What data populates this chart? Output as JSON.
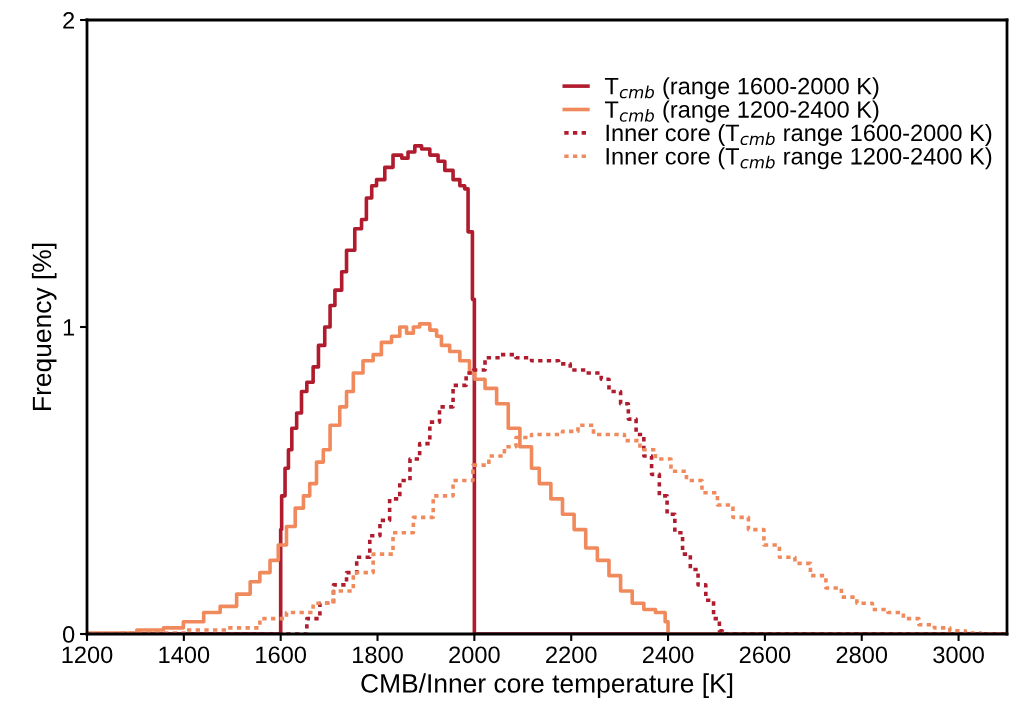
{
  "chart_data": {
    "type": "step",
    "xlabel": "CMB/Inner core temperature [K]",
    "ylabel": "Frequency [%]",
    "xlim": [
      1200,
      3100
    ],
    "ylim": [
      0,
      2
    ],
    "xticks": [
      1200,
      1400,
      1600,
      1800,
      2000,
      2200,
      2400,
      2600,
      2800,
      3000
    ],
    "yticks": [
      0,
      1,
      2
    ],
    "grid": false,
    "legend": "top right",
    "series": [
      {
        "name": "T$_{cmb}$ (range 1600-2000 K)",
        "color": "#b01c2e",
        "line_style": "solid",
        "x": [
          1200,
          1600,
          1602,
          1609,
          1616,
          1623,
          1633,
          1643,
          1654,
          1667,
          1678,
          1691,
          1702,
          1712,
          1726,
          1736,
          1753,
          1767,
          1777,
          1788,
          1798,
          1815,
          1832,
          1850,
          1863,
          1877,
          1891,
          1908,
          1925,
          1939,
          1956,
          1970,
          1980,
          1987,
          1996,
          2000,
          3100
        ],
        "values": [
          0,
          0.34,
          0.45,
          0.54,
          0.6,
          0.67,
          0.72,
          0.79,
          0.82,
          0.87,
          0.94,
          1.0,
          1.07,
          1.12,
          1.18,
          1.25,
          1.32,
          1.35,
          1.42,
          1.46,
          1.48,
          1.52,
          1.56,
          1.55,
          1.57,
          1.59,
          1.58,
          1.56,
          1.54,
          1.51,
          1.48,
          1.46,
          1.45,
          1.31,
          1.09,
          0,
          0
        ]
      },
      {
        "name": "T$_{cmb}$ (range 1200-2400 K)",
        "color": "#f08a5c",
        "line_style": "solid",
        "x": [
          1200,
          1303,
          1358,
          1399,
          1441,
          1475,
          1509,
          1537,
          1557,
          1578,
          1595,
          1612,
          1630,
          1647,
          1660,
          1674,
          1688,
          1702,
          1722,
          1736,
          1750,
          1770,
          1791,
          1808,
          1829,
          1846,
          1860,
          1874,
          1887,
          1908,
          1922,
          1932,
          1949,
          1970,
          1990,
          2001,
          2022,
          2046,
          2070,
          2094,
          2118,
          2134,
          2158,
          2182,
          2206,
          2230,
          2254,
          2278,
          2302,
          2326,
          2350,
          2374,
          2394,
          2400,
          3100
        ],
        "values": [
          0.003,
          0.013,
          0.02,
          0.04,
          0.07,
          0.09,
          0.13,
          0.17,
          0.2,
          0.24,
          0.29,
          0.35,
          0.41,
          0.45,
          0.49,
          0.56,
          0.6,
          0.68,
          0.74,
          0.79,
          0.85,
          0.89,
          0.91,
          0.95,
          0.97,
          1.0,
          0.98,
          1.0,
          1.01,
          0.99,
          0.97,
          0.94,
          0.92,
          0.89,
          0.85,
          0.83,
          0.8,
          0.75,
          0.67,
          0.61,
          0.54,
          0.49,
          0.44,
          0.39,
          0.34,
          0.28,
          0.24,
          0.19,
          0.14,
          0.1,
          0.08,
          0.07,
          0.04,
          0,
          0
        ]
      },
      {
        "name": "Inner core (T$_{cmb}$ range 1600-2000 K)",
        "color": "#b01c2e",
        "line_style": "dashed",
        "x": [
          1200,
          1612,
          1654,
          1681,
          1709,
          1736,
          1757,
          1784,
          1805,
          1825,
          1846,
          1867,
          1887,
          1908,
          1928,
          1956,
          1983,
          1998,
          2022,
          2054,
          2086,
          2118,
          2150,
          2174,
          2198,
          2230,
          2262,
          2278,
          2302,
          2318,
          2334,
          2350,
          2366,
          2382,
          2398,
          2414,
          2430,
          2446,
          2462,
          2478,
          2494,
          2506,
          2512,
          3100
        ],
        "values": [
          0,
          0,
          0.05,
          0.1,
          0.16,
          0.2,
          0.25,
          0.32,
          0.37,
          0.44,
          0.5,
          0.57,
          0.62,
          0.69,
          0.74,
          0.81,
          0.85,
          0.86,
          0.9,
          0.91,
          0.9,
          0.89,
          0.89,
          0.88,
          0.86,
          0.85,
          0.83,
          0.79,
          0.75,
          0.7,
          0.65,
          0.58,
          0.52,
          0.45,
          0.39,
          0.33,
          0.26,
          0.21,
          0.16,
          0.11,
          0.05,
          0.01,
          0,
          0
        ]
      },
      {
        "name": "Inner core (T$_{cmb}$ range 1200-2400 K)",
        "color": "#f08a5c",
        "line_style": "dashed",
        "x": [
          1200,
          1269,
          1406,
          1489,
          1557,
          1612,
          1667,
          1709,
          1750,
          1791,
          1832,
          1874,
          1915,
          1956,
          1997,
          2030,
          2062,
          2086,
          2118,
          2150,
          2182,
          2214,
          2246,
          2278,
          2310,
          2342,
          2374,
          2406,
          2438,
          2470,
          2502,
          2534,
          2566,
          2598,
          2630,
          2662,
          2694,
          2726,
          2758,
          2790,
          2822,
          2854,
          2886,
          2918,
          2950,
          2982,
          3014,
          3046,
          3100
        ],
        "values": [
          0,
          0.003,
          0.013,
          0.02,
          0.05,
          0.07,
          0.1,
          0.14,
          0.2,
          0.26,
          0.33,
          0.38,
          0.45,
          0.5,
          0.55,
          0.58,
          0.61,
          0.64,
          0.65,
          0.65,
          0.66,
          0.68,
          0.65,
          0.65,
          0.63,
          0.6,
          0.57,
          0.53,
          0.5,
          0.46,
          0.42,
          0.38,
          0.34,
          0.29,
          0.25,
          0.23,
          0.19,
          0.15,
          0.12,
          0.1,
          0.08,
          0.07,
          0.05,
          0.03,
          0.02,
          0.01,
          0.003,
          0,
          0
        ]
      }
    ]
  }
}
